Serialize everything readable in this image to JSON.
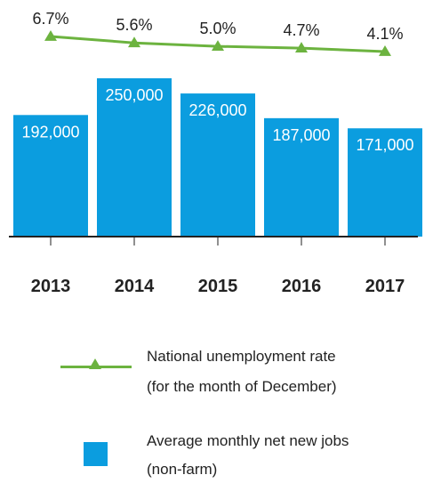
{
  "colors": {
    "bar": "#0b9ddf",
    "line": "#6cb33f",
    "axis": "#222222",
    "bar_label": "#ffffff",
    "text": "#222222"
  },
  "chart_data": {
    "type": "bar",
    "categories": [
      "2013",
      "2014",
      "2015",
      "2016",
      "2017"
    ],
    "series": [
      {
        "type": "bar",
        "values": [
          192000,
          250000,
          226000,
          187000,
          171000
        ],
        "labels": [
          "192,000",
          "250,000",
          "226,000",
          "187,000",
          "171,000"
        ]
      },
      {
        "type": "line",
        "values": [
          6.7,
          5.6,
          5.0,
          4.7,
          4.1
        ],
        "labels": [
          "6.7%",
          "5.6%",
          "5.0%",
          "4.7%",
          "4.1%"
        ]
      }
    ],
    "title": "",
    "xlabel": "",
    "ylabel": "",
    "grid": false,
    "legend_position": "bottom"
  },
  "legend": {
    "line_label_1": "National unemployment rate",
    "line_label_2": "(for the month of December)",
    "bar_label_1": "Average monthly net new jobs",
    "bar_label_2": "(non-farm)"
  }
}
